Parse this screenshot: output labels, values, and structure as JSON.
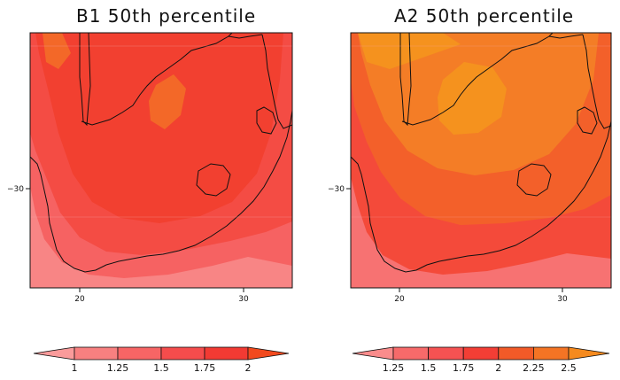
{
  "panels": [
    {
      "title": "B1 50th percentile",
      "x_ticks": [
        "20",
        "30"
      ],
      "y_ticks": [
        "−30"
      ],
      "colorbar": {
        "labels": [
          "1",
          "1.25",
          "1.5",
          "1.75",
          "2"
        ],
        "colors": [
          "#fa9b9b",
          "#f88080",
          "#f76565",
          "#f54c4c",
          "#f23a33",
          "#f24a1e"
        ]
      },
      "colors": {
        "outer": "#f88585",
        "mid": "#f66262",
        "inner": "#f44c44",
        "core": "#f24030",
        "hot": "#f36828"
      }
    },
    {
      "title": "A2 50th percentile",
      "x_ticks": [
        "20",
        "30"
      ],
      "y_ticks": [
        "−30"
      ],
      "colorbar": {
        "labels": [
          "1.25",
          "1.5",
          "1.75",
          "2",
          "2.25",
          "2.5"
        ],
        "colors": [
          "#fa8c8c",
          "#f76a6a",
          "#f55252",
          "#f33e35",
          "#f25a28",
          "#f47424",
          "#f58a1e"
        ]
      },
      "colors": {
        "outer": "#f77272",
        "mid": "#f44a3a",
        "inner": "#f3602a",
        "core": "#f47d26",
        "hot": "#f5921e"
      }
    }
  ]
}
